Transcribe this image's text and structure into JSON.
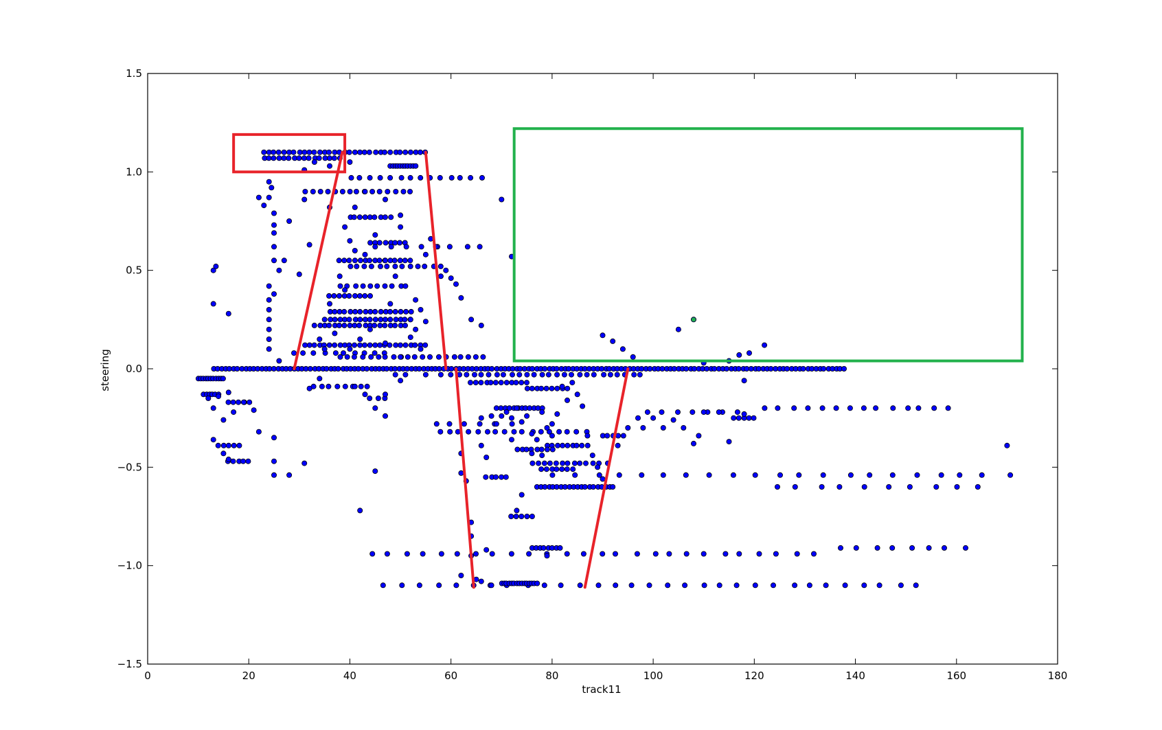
{
  "chart_data": {
    "type": "scatter",
    "title": "",
    "xlabel": "track11",
    "ylabel": "steering",
    "xlim": [
      0,
      180
    ],
    "ylim": [
      -1.5,
      1.5
    ],
    "xticks": [
      0,
      20,
      40,
      60,
      80,
      100,
      120,
      140,
      160,
      180
    ],
    "yticks": [
      -1.5,
      -1.0,
      -0.5,
      0.0,
      0.5,
      1.0,
      1.5
    ],
    "xtick_labels": [
      "0",
      "20",
      "40",
      "60",
      "80",
      "100",
      "120",
      "140",
      "160",
      "180"
    ],
    "ytick_labels": [
      "−1.5",
      "−1.0",
      "−0.5",
      "0.0",
      "0.5",
      "1.0",
      "1.5"
    ],
    "grid": false,
    "marker_color": "#0000ff",
    "marker_edge": "#000000",
    "annotation_colors": {
      "red": "#e8232a",
      "green": "#22b14c"
    },
    "rows": [
      {
        "y": 1.1,
        "x_start": 23,
        "x_end": 55,
        "step": 1
      },
      {
        "y": 1.07,
        "x_start": 23,
        "x_end": 38,
        "step": 1
      },
      {
        "y": 1.03,
        "x_start": 48,
        "x_end": 53,
        "step": 0.5
      },
      {
        "y": 0.97,
        "x_start": 40,
        "x_end": 67,
        "step": 2
      },
      {
        "y": 0.9,
        "x_start": 31,
        "x_end": 52,
        "step": 1.5
      },
      {
        "y": 0.77,
        "x_start": 40,
        "x_end": 48,
        "step": 1
      },
      {
        "y": 0.64,
        "x_start": 44,
        "x_end": 51,
        "step": 1
      },
      {
        "y": 0.62,
        "x_start": 48,
        "x_end": 68,
        "step": 3
      },
      {
        "y": 0.55,
        "x_start": 38,
        "x_end": 52,
        "step": 1
      },
      {
        "y": 0.52,
        "x_start": 40,
        "x_end": 58,
        "step": 1.5
      },
      {
        "y": 0.42,
        "x_start": 38,
        "x_end": 50,
        "step": 1.5
      },
      {
        "y": 0.37,
        "x_start": 36,
        "x_end": 44,
        "step": 1
      },
      {
        "y": 0.29,
        "x_start": 36,
        "x_end": 52,
        "step": 1
      },
      {
        "y": 0.25,
        "x_start": 35,
        "x_end": 52,
        "step": 1
      },
      {
        "y": 0.22,
        "x_start": 33,
        "x_end": 51,
        "step": 1
      },
      {
        "y": 0.12,
        "x_start": 31,
        "x_end": 55,
        "step": 1
      },
      {
        "y": 0.08,
        "x_start": 29,
        "x_end": 48,
        "step": 2
      },
      {
        "y": 0.06,
        "x_start": 38,
        "x_end": 67,
        "step": 1.5
      },
      {
        "y": 0.0,
        "x_start": 13,
        "x_end": 138,
        "step": 0.8
      },
      {
        "y": -0.03,
        "x_start": 60,
        "x_end": 98,
        "step": 1.5
      },
      {
        "y": -0.05,
        "x_start": 10,
        "x_end": 15,
        "step": 0.5
      },
      {
        "y": -0.07,
        "x_start": 64,
        "x_end": 75,
        "step": 1
      },
      {
        "y": -0.09,
        "x_start": 33,
        "x_end": 44,
        "step": 1.5
      },
      {
        "y": -0.1,
        "x_start": 75,
        "x_end": 83,
        "step": 1
      },
      {
        "y": -0.13,
        "x_start": 11,
        "x_end": 14,
        "step": 0.6
      },
      {
        "y": -0.15,
        "x_start": 44,
        "x_end": 48,
        "step": 1.5
      },
      {
        "y": -0.17,
        "x_start": 16,
        "x_end": 20,
        "step": 1
      },
      {
        "y": -0.2,
        "x_start": 70,
        "x_end": 78,
        "step": 0.8
      },
      {
        "y": -0.2,
        "x_start": 122,
        "x_end": 159,
        "step": 2.8
      },
      {
        "y": -0.22,
        "x_start": 99,
        "x_end": 119,
        "step": 3
      },
      {
        "y": -0.25,
        "x_start": 116,
        "x_end": 120,
        "step": 1
      },
      {
        "y": -0.28,
        "x_start": 57,
        "x_end": 72,
        "step": 3
      },
      {
        "y": -0.32,
        "x_start": 58,
        "x_end": 88,
        "step": 1.8
      },
      {
        "y": -0.34,
        "x_start": 90,
        "x_end": 94,
        "step": 1
      },
      {
        "y": -0.39,
        "x_start": 14,
        "x_end": 18,
        "step": 1
      },
      {
        "y": -0.39,
        "x_start": 79,
        "x_end": 87,
        "step": 1
      },
      {
        "y": -0.41,
        "x_start": 73,
        "x_end": 80,
        "step": 1
      },
      {
        "y": -0.47,
        "x_start": 16,
        "x_end": 20,
        "step": 1
      },
      {
        "y": -0.48,
        "x_start": 76,
        "x_end": 90,
        "step": 1.2
      },
      {
        "y": -0.51,
        "x_start": 78,
        "x_end": 84,
        "step": 1
      },
      {
        "y": -0.54,
        "x_start": 80,
        "x_end": 171,
        "step": 4.5
      },
      {
        "y": -0.55,
        "x_start": 67,
        "x_end": 71,
        "step": 1
      },
      {
        "y": -0.6,
        "x_start": 77,
        "x_end": 92,
        "step": 0.8
      },
      {
        "y": -0.6,
        "x_start": 124,
        "x_end": 168,
        "step": 4.5
      },
      {
        "y": -0.75,
        "x_start": 72,
        "x_end": 76,
        "step": 1
      },
      {
        "y": -0.91,
        "x_start": 76,
        "x_end": 82,
        "step": 0.8
      },
      {
        "y": -0.91,
        "x_start": 137,
        "x_end": 163,
        "step": 3.5
      },
      {
        "y": -0.94,
        "x_start": 44,
        "x_end": 133,
        "step": 3.5
      },
      {
        "y": -1.1,
        "x_start": 47,
        "x_end": 152,
        "step": 3.5
      },
      {
        "y": -1.09,
        "x_start": 70,
        "x_end": 77,
        "step": 0.5
      }
    ],
    "points": [
      [
        13,
        0.5
      ],
      [
        13.5,
        0.52
      ],
      [
        13,
        0.33
      ],
      [
        16,
        0.28
      ],
      [
        24,
        0.95
      ],
      [
        24.5,
        0.92
      ],
      [
        24,
        0.87
      ],
      [
        22,
        0.87
      ],
      [
        23,
        0.83
      ],
      [
        25,
        0.79
      ],
      [
        25,
        0.73
      ],
      [
        25,
        0.69
      ],
      [
        25,
        0.62
      ],
      [
        25,
        0.55
      ],
      [
        26,
        0.5
      ],
      [
        27,
        0.55
      ],
      [
        24,
        0.42
      ],
      [
        25,
        0.38
      ],
      [
        24,
        0.35
      ],
      [
        24,
        0.3
      ],
      [
        24,
        0.25
      ],
      [
        24,
        0.2
      ],
      [
        24,
        0.15
      ],
      [
        24,
        0.1
      ],
      [
        26,
        0.04
      ],
      [
        28,
        0.75
      ],
      [
        30,
        0.48
      ],
      [
        32,
        0.63
      ],
      [
        31,
        0.86
      ],
      [
        36,
        0.82
      ],
      [
        39,
        0.72
      ],
      [
        41,
        0.6
      ],
      [
        43,
        0.58
      ],
      [
        45,
        0.62
      ],
      [
        47,
        0.55
      ],
      [
        49,
        0.47
      ],
      [
        51,
        0.42
      ],
      [
        53,
        0.35
      ],
      [
        54,
        0.3
      ],
      [
        52,
        0.16
      ],
      [
        53,
        0.2
      ],
      [
        55,
        0.58
      ],
      [
        56,
        0.66
      ],
      [
        57,
        0.62
      ],
      [
        58,
        0.47
      ],
      [
        59,
        0.5
      ],
      [
        60,
        0.46
      ],
      [
        61,
        0.43
      ],
      [
        62,
        0.36
      ],
      [
        64,
        0.25
      ],
      [
        66,
        0.22
      ],
      [
        70,
        0.86
      ],
      [
        72,
        0.57
      ],
      [
        50,
        0.72
      ],
      [
        50,
        0.78
      ],
      [
        45,
        0.68
      ],
      [
        40,
        0.65
      ],
      [
        41,
        0.82
      ],
      [
        47,
        0.86
      ],
      [
        43,
        0.9
      ],
      [
        38,
        0.47
      ],
      [
        39,
        0.4
      ],
      [
        36,
        0.33
      ],
      [
        37,
        0.18
      ],
      [
        44,
        0.2
      ],
      [
        48,
        0.33
      ],
      [
        54,
        0.1
      ],
      [
        55,
        0.24
      ],
      [
        52,
        0.25
      ],
      [
        34,
        0.15
      ],
      [
        35,
        0.1
      ],
      [
        42,
        0.15
      ],
      [
        47,
        0.13
      ],
      [
        50,
        0.06
      ],
      [
        36,
        1.03
      ],
      [
        40,
        1.05
      ],
      [
        31,
        1.01
      ],
      [
        33,
        1.05
      ],
      [
        40,
        0.1
      ],
      [
        90,
        0.17
      ],
      [
        92,
        0.14
      ],
      [
        94,
        0.1
      ],
      [
        96,
        0.06
      ],
      [
        105,
        0.2
      ],
      [
        108,
        0.25
      ],
      [
        110,
        0.03
      ],
      [
        115,
        0.04
      ],
      [
        117,
        0.07
      ],
      [
        119,
        0.08
      ],
      [
        122,
        0.12
      ],
      [
        118,
        -0.06
      ],
      [
        12,
        -0.15
      ],
      [
        13,
        -0.2
      ],
      [
        14,
        -0.14
      ],
      [
        15,
        -0.26
      ],
      [
        16,
        -0.12
      ],
      [
        17,
        -0.22
      ],
      [
        19,
        -0.17
      ],
      [
        21,
        -0.21
      ],
      [
        22,
        -0.32
      ],
      [
        13,
        -0.36
      ],
      [
        15,
        -0.43
      ],
      [
        16,
        -0.46
      ],
      [
        25,
        -0.47
      ],
      [
        25,
        -0.54
      ],
      [
        28,
        -0.54
      ],
      [
        31,
        -0.48
      ],
      [
        41,
        -0.09
      ],
      [
        43,
        -0.13
      ],
      [
        45,
        -0.2
      ],
      [
        47,
        -0.13
      ],
      [
        47,
        -0.24
      ],
      [
        49,
        -0.03
      ],
      [
        51,
        -0.03
      ],
      [
        45,
        -0.52
      ],
      [
        42,
        -0.72
      ],
      [
        50,
        -0.06
      ],
      [
        55,
        -0.03
      ],
      [
        58,
        -0.03
      ],
      [
        62,
        -0.43
      ],
      [
        62,
        -0.53
      ],
      [
        63,
        -0.57
      ],
      [
        64,
        -0.78
      ],
      [
        64,
        -0.85
      ],
      [
        66,
        -0.39
      ],
      [
        66,
        -0.25
      ],
      [
        67,
        -0.45
      ],
      [
        68,
        -0.24
      ],
      [
        69,
        -0.28
      ],
      [
        69,
        -0.2
      ],
      [
        70,
        -0.24
      ],
      [
        71,
        -0.22
      ],
      [
        72,
        -0.25
      ],
      [
        72,
        -0.36
      ],
      [
        73,
        -0.2
      ],
      [
        74,
        -0.27
      ],
      [
        75,
        -0.24
      ],
      [
        73,
        -0.72
      ],
      [
        74,
        -0.64
      ],
      [
        76,
        -0.33
      ],
      [
        76,
        -0.43
      ],
      [
        77,
        -0.36
      ],
      [
        78,
        -0.22
      ],
      [
        78,
        -0.44
      ],
      [
        79,
        -0.3
      ],
      [
        80,
        -0.34
      ],
      [
        80,
        -0.28
      ],
      [
        81,
        -0.23
      ],
      [
        82,
        -0.09
      ],
      [
        83,
        -0.16
      ],
      [
        84,
        -0.07
      ],
      [
        85,
        -0.13
      ],
      [
        86,
        -0.19
      ],
      [
        87,
        -0.34
      ],
      [
        88,
        -0.44
      ],
      [
        89,
        -0.5
      ],
      [
        90,
        -0.56
      ],
      [
        91,
        -0.48
      ],
      [
        92,
        -0.6
      ],
      [
        93,
        -0.39
      ],
      [
        95,
        -0.3
      ],
      [
        97,
        -0.25
      ],
      [
        98,
        -0.3
      ],
      [
        100,
        -0.25
      ],
      [
        102,
        -0.3
      ],
      [
        104,
        -0.26
      ],
      [
        106,
        -0.3
      ],
      [
        108,
        -0.38
      ],
      [
        109,
        -0.34
      ],
      [
        110,
        -0.22
      ],
      [
        113,
        -0.22
      ],
      [
        115,
        -0.37
      ],
      [
        118,
        -0.23
      ],
      [
        62,
        -1.05
      ],
      [
        65,
        -1.07
      ],
      [
        66,
        -1.08
      ],
      [
        68,
        -1.1
      ],
      [
        64,
        -0.95
      ],
      [
        67,
        -0.92
      ],
      [
        79,
        -0.95
      ],
      [
        170,
        -0.39
      ],
      [
        25,
        -0.35
      ],
      [
        32,
        -0.1
      ],
      [
        34,
        -0.05
      ]
    ],
    "annotations": [
      {
        "kind": "rect",
        "color": "red",
        "x0": 17,
        "y0": 1.0,
        "x1": 39,
        "y1": 1.19
      },
      {
        "kind": "rect",
        "color": "green",
        "x0": 72.5,
        "y0": 0.04,
        "x1": 173,
        "y1": 1.22
      },
      {
        "kind": "line",
        "color": "red",
        "x0": 29,
        "y0": 0.0,
        "x1": 38.5,
        "y1": 1.1
      },
      {
        "kind": "line",
        "color": "red",
        "x0": 55,
        "y0": 1.1,
        "x1": 59,
        "y1": 0.0
      },
      {
        "kind": "line",
        "color": "red",
        "x0": 61,
        "y0": 0.0,
        "x1": 64.5,
        "y1": -1.11
      },
      {
        "kind": "line",
        "color": "red",
        "x0": 86.5,
        "y0": -1.11,
        "x1": 95,
        "y1": 0.0
      },
      {
        "kind": "dot",
        "color": "green",
        "x": 108,
        "y": 0.25
      }
    ]
  }
}
